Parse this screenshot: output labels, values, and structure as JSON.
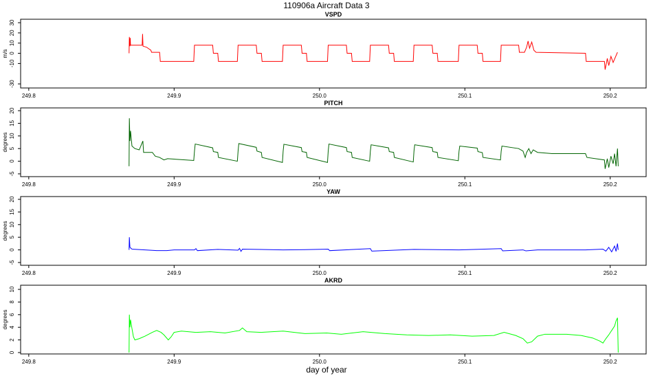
{
  "title": "110906a   Aircraft Data 3",
  "x_label": "day of year",
  "chart_data": [
    {
      "type": "line",
      "title": "VSPD",
      "y_label": "m/s",
      "color": "#ff0000",
      "xlim": [
        249.7944,
        250.2247
      ],
      "ylim": [
        -34,
        33.4
      ],
      "xticks": [
        249.8,
        249.9,
        {
          "value": 250,
          "label": "250.0"
        },
        250.1,
        250.2
      ],
      "yticks": [
        -30,
        -10,
        0,
        10,
        20,
        30
      ],
      "x": [
        249.869,
        249.8692,
        249.8696,
        249.8698,
        249.87,
        249.878,
        249.8783,
        249.8786,
        249.881,
        249.884,
        249.8845,
        249.89,
        249.8905,
        249.9135,
        249.914,
        249.9265,
        249.927,
        249.93,
        249.9305,
        249.9435,
        249.944,
        249.9565,
        249.957,
        249.96,
        249.9605,
        249.9745,
        249.975,
        249.9875,
        249.988,
        249.991,
        249.9915,
        250.0055,
        250.006,
        250.0185,
        250.019,
        250.022,
        250.0225,
        250.0345,
        250.035,
        250.0475,
        250.048,
        250.051,
        250.0515,
        250.0645,
        250.065,
        250.0775,
        250.078,
        250.081,
        250.0815,
        250.0955,
        250.096,
        250.1085,
        250.109,
        250.112,
        250.1125,
        250.1245,
        250.125,
        250.137,
        250.1375,
        250.141,
        250.1425,
        250.1435,
        250.1445,
        250.146,
        250.1475,
        250.149,
        250.183,
        250.1835,
        250.196,
        250.1965,
        250.198,
        250.199,
        250.2005,
        250.202,
        250.2035,
        250.205
      ],
      "values": [
        0,
        16,
        7,
        15,
        8,
        8,
        19,
        7,
        6,
        3,
        1,
        1,
        -8,
        -8,
        8,
        8,
        0,
        0,
        -8,
        -8,
        8,
        8,
        0,
        0,
        -8,
        -8,
        8,
        8,
        0,
        0,
        -8,
        -8,
        8,
        8,
        0,
        0,
        -8,
        -8,
        8,
        8,
        0,
        0,
        -8,
        -8,
        8,
        8,
        0,
        0,
        -8,
        -8,
        8,
        8,
        0,
        0,
        -8,
        -8,
        8,
        8,
        1,
        1,
        6,
        12,
        5,
        11,
        3,
        1,
        0,
        -8,
        -8,
        -16,
        -5,
        -12,
        -3,
        -9,
        -4,
        1
      ]
    },
    {
      "type": "line",
      "title": "PITCH",
      "y_label": "degrees",
      "color": "#006400",
      "xlim": [
        249.7944,
        250.2247
      ],
      "ylim": [
        -6.1,
        21.1
      ],
      "xticks": [
        249.8,
        249.9,
        {
          "value": 250,
          "label": "250.0"
        },
        250.1,
        250.2
      ],
      "yticks": [
        -5,
        0,
        5,
        10,
        15,
        20
      ],
      "x": [
        249.869,
        249.8692,
        249.8696,
        249.87,
        249.871,
        249.873,
        249.876,
        249.8785,
        249.879,
        249.885,
        249.887,
        249.89,
        249.893,
        249.8955,
        249.9135,
        249.914,
        249.9145,
        249.9265,
        249.927,
        249.93,
        249.9305,
        249.9435,
        249.944,
        249.9445,
        249.9565,
        249.957,
        249.96,
        249.9605,
        249.9745,
        249.975,
        249.9755,
        249.9875,
        249.988,
        249.991,
        249.9915,
        250.0055,
        250.006,
        250.0065,
        250.0185,
        250.019,
        250.022,
        250.0225,
        250.0345,
        250.035,
        250.0355,
        250.0475,
        250.048,
        250.051,
        250.0515,
        250.0645,
        250.065,
        250.0655,
        250.0775,
        250.078,
        250.081,
        250.0815,
        250.0955,
        250.096,
        250.0965,
        250.1085,
        250.109,
        250.112,
        250.1125,
        250.1245,
        250.125,
        250.1255,
        250.137,
        250.14,
        250.1415,
        250.1425,
        250.144,
        250.1455,
        250.147,
        250.15,
        250.16,
        250.183,
        250.184,
        250.196,
        250.1965,
        250.198,
        250.199,
        250.2005,
        250.202,
        250.203,
        250.204,
        250.205,
        250.2055
      ],
      "values": [
        -2,
        17,
        8,
        12,
        6,
        5,
        4.5,
        8,
        3.5,
        3.5,
        2,
        1.5,
        0.5,
        1,
        0.3,
        4,
        6.8,
        5.3,
        3.8,
        3.5,
        1.5,
        0,
        4,
        7,
        5.5,
        4,
        3.5,
        1.5,
        -0.5,
        4,
        6.7,
        5.4,
        3.8,
        3.5,
        1.5,
        -0.5,
        4,
        6.8,
        5.4,
        3.8,
        3.5,
        1.5,
        0,
        4,
        6.5,
        5.3,
        3.8,
        3.5,
        1.5,
        -0.3,
        4,
        6.5,
        5.4,
        3.8,
        3.5,
        1.5,
        0.2,
        4,
        6,
        5.2,
        3.8,
        3.4,
        1.5,
        0.5,
        4,
        6,
        5,
        4,
        1.5,
        3.5,
        5,
        3,
        4.5,
        3.5,
        3,
        3,
        1.5,
        0.5,
        -3,
        1,
        -2.5,
        2,
        -1,
        3,
        -2,
        5,
        -2
      ]
    },
    {
      "type": "line",
      "title": "YAW",
      "y_label": "degrees",
      "color": "#0000ff",
      "xlim": [
        249.7944,
        250.2247
      ],
      "ylim": [
        -6.1,
        21.1
      ],
      "xticks": [
        249.8,
        249.9,
        {
          "value": 250,
          "label": "250.0"
        },
        250.1,
        250.2
      ],
      "yticks": [
        -5,
        0,
        5,
        10,
        15,
        20
      ],
      "x": [
        249.869,
        249.8692,
        249.8696,
        249.871,
        249.88,
        249.888,
        249.895,
        249.9,
        249.914,
        249.915,
        249.916,
        249.93,
        249.944,
        249.945,
        249.946,
        249.947,
        249.975,
        249.99,
        250.006,
        250.007,
        250.035,
        250.036,
        250.065,
        250.096,
        250.125,
        250.126,
        250.14,
        250.142,
        250.15,
        250.183,
        250.195,
        250.197,
        250.199,
        250.201,
        250.203,
        250.204,
        250.205,
        250.2055
      ],
      "values": [
        0,
        5,
        1,
        0.3,
        0,
        -0.3,
        -0.3,
        0,
        0,
        0.5,
        -0.3,
        0.2,
        -0.1,
        0.6,
        -0.6,
        0.3,
        0,
        0.1,
        0.3,
        -0.3,
        0.5,
        -0.5,
        0.2,
        0,
        0.5,
        -0.4,
        0,
        -0.4,
        0,
        0,
        0.3,
        -0.5,
        1,
        -0.8,
        1.5,
        -0.6,
        2.5,
        0
      ]
    },
    {
      "type": "line",
      "title": "AKRD",
      "y_label": "degrees",
      "color": "#00ff00",
      "xlim": [
        249.7944,
        250.2247
      ],
      "ylim": [
        -0.22,
        10.66
      ],
      "xticks": [
        249.8,
        249.9,
        {
          "value": 250,
          "label": "250.0"
        },
        250.1,
        250.2
      ],
      "yticks": [
        0,
        2,
        4,
        6,
        8,
        10
      ],
      "x": [
        249.869,
        249.8692,
        249.8696,
        249.87,
        249.871,
        249.872,
        249.873,
        249.876,
        249.88,
        249.885,
        249.888,
        249.891,
        249.893,
        249.896,
        249.898,
        249.9,
        249.905,
        249.915,
        249.925,
        249.935,
        249.945,
        249.947,
        249.95,
        249.96,
        249.975,
        249.99,
        250.005,
        250.015,
        250.03,
        250.045,
        250.06,
        250.075,
        250.09,
        250.105,
        250.12,
        250.127,
        250.135,
        250.14,
        250.143,
        250.146,
        250.15,
        250.155,
        250.17,
        250.18,
        250.188,
        250.193,
        250.195,
        250.197,
        250.199,
        250.201,
        250.203,
        250.204,
        250.205,
        250.2055
      ],
      "values": [
        0,
        6,
        4,
        5.2,
        3.8,
        2.5,
        2,
        2.2,
        2.6,
        3.2,
        3.5,
        3.2,
        2.8,
        2,
        2.5,
        3.2,
        3.4,
        3.2,
        3.3,
        3.1,
        3.5,
        3.9,
        3.3,
        3.2,
        3.4,
        3,
        3.1,
        2.9,
        3.3,
        3,
        2.8,
        2.7,
        2.8,
        2.6,
        2.7,
        3.2,
        2.7,
        2.2,
        1.5,
        1.7,
        2.6,
        2.9,
        2.9,
        2.7,
        2.3,
        1.8,
        1.5,
        2.2,
        2.8,
        3.5,
        4.2,
        5,
        5.5,
        0
      ]
    }
  ]
}
